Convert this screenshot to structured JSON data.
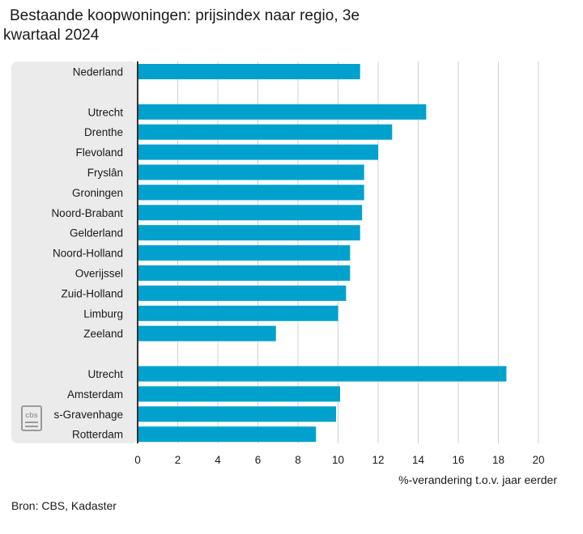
{
  "title": {
    "line1": "Bestaande koopwoningen: prijsindex naar regio, 3e",
    "line2": "kwartaal 2024"
  },
  "source": "Bron: CBS, Kadaster",
  "logo_text": "cbs",
  "colors": {
    "bar": "#00a1cd",
    "label_panel": "#ebebeb",
    "grid": "#d0d0d0",
    "axis": "#333333",
    "logo": "#9a9a9a"
  },
  "chart_data": {
    "type": "bar",
    "orientation": "horizontal",
    "title": "Bestaande koopwoningen: prijsindex naar regio, 3e kwartaal 2024",
    "xlabel": "%-verandering t.o.v. jaar eerder",
    "ylabel": "",
    "xlim": [
      0,
      20
    ],
    "xticks": [
      0,
      2,
      4,
      6,
      8,
      10,
      12,
      14,
      16,
      18,
      20
    ],
    "grid": true,
    "groups": [
      {
        "items": [
          {
            "label": "Nederland",
            "value": 11.1
          }
        ]
      },
      {
        "items": [
          {
            "label": "Utrecht",
            "value": 14.4
          },
          {
            "label": "Drenthe",
            "value": 12.7
          },
          {
            "label": "Flevoland",
            "value": 12.0
          },
          {
            "label": "Fryslân",
            "value": 11.3
          },
          {
            "label": "Groningen",
            "value": 11.3
          },
          {
            "label": "Noord-Brabant",
            "value": 11.2
          },
          {
            "label": "Gelderland",
            "value": 11.1
          },
          {
            "label": "Noord-Holland",
            "value": 10.6
          },
          {
            "label": "Overijssel",
            "value": 10.6
          },
          {
            "label": "Zuid-Holland",
            "value": 10.4
          },
          {
            "label": "Limburg",
            "value": 10.0
          },
          {
            "label": "Zeeland",
            "value": 6.9
          }
        ]
      },
      {
        "items": [
          {
            "label": "Utrecht",
            "value": 18.4
          },
          {
            "label": "Amsterdam",
            "value": 10.1
          },
          {
            "label": "s-Gravenhage",
            "value": 9.9
          },
          {
            "label": "Rotterdam",
            "value": 8.9
          }
        ]
      }
    ]
  }
}
